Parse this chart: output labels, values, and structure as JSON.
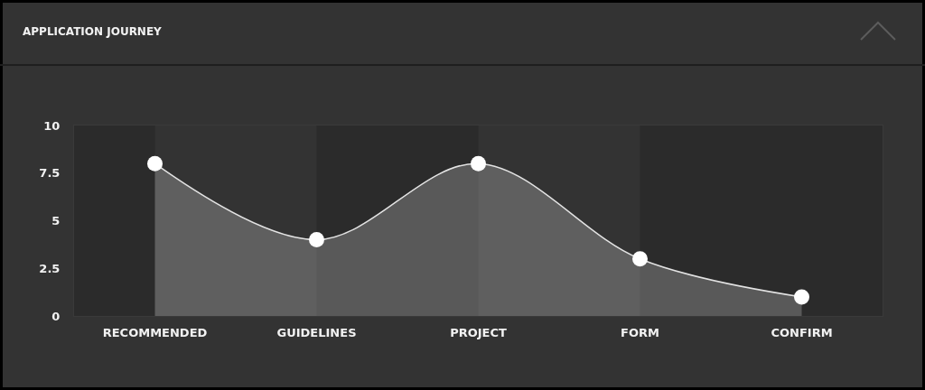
{
  "chart_data": {
    "type": "area",
    "title": "APPLICATION JOURNEY",
    "categories": [
      "RECOMMENDED",
      "GUIDELINES",
      "PROJECT",
      "FORM",
      "CONFIRM"
    ],
    "series": [
      {
        "color": "#ffffff",
        "values": [
          8,
          4,
          8,
          3,
          1
        ]
      }
    ],
    "ylim": [
      0,
      10
    ],
    "yticks": [
      0,
      2.5,
      5,
      7.5,
      10
    ],
    "grid": false,
    "marker": "circle",
    "line_style": "solid",
    "bands": [
      {
        "axis": "x",
        "from": "RECOMMENDED",
        "to": "GUIDELINES",
        "color": "#333333"
      },
      {
        "axis": "x",
        "from": "PROJECT",
        "to": "FORM",
        "color": "#333333"
      }
    ]
  }
}
